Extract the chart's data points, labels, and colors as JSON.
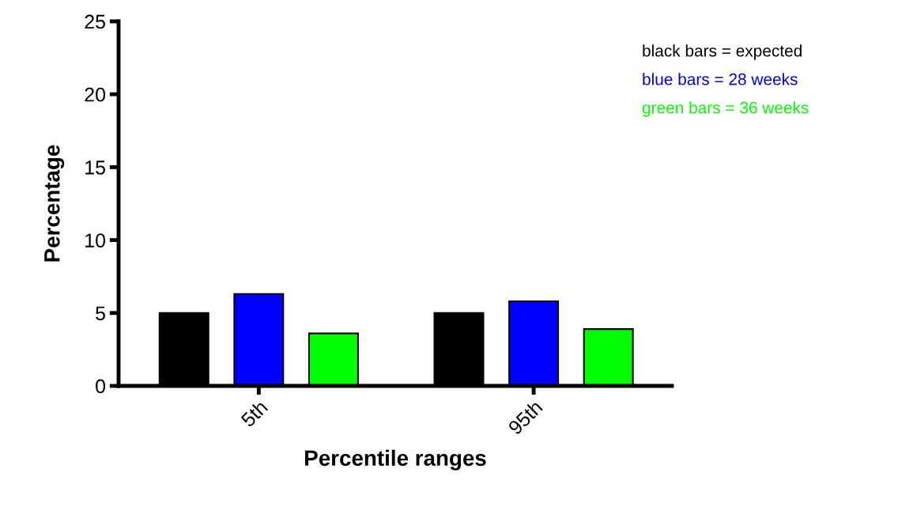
{
  "chart_data": {
    "type": "bar",
    "xlabel": "Percentile ranges",
    "ylabel": "Percentage",
    "categories": [
      "5th",
      "95th"
    ],
    "series": [
      {
        "color": "#000000",
        "values": [
          5,
          5
        ]
      },
      {
        "color": "#0000ff",
        "values": [
          6.3,
          5.8
        ]
      },
      {
        "color": "#00ff00",
        "values": [
          3.6,
          3.9
        ]
      }
    ],
    "annotations": [
      "black bars = expected",
      "blue bars = 28 weeks",
      "green bars = 36 weeks"
    ],
    "ylim": [
      0,
      25
    ],
    "yticks": [
      0,
      5,
      10,
      15,
      20,
      25
    ],
    "grid": false
  }
}
